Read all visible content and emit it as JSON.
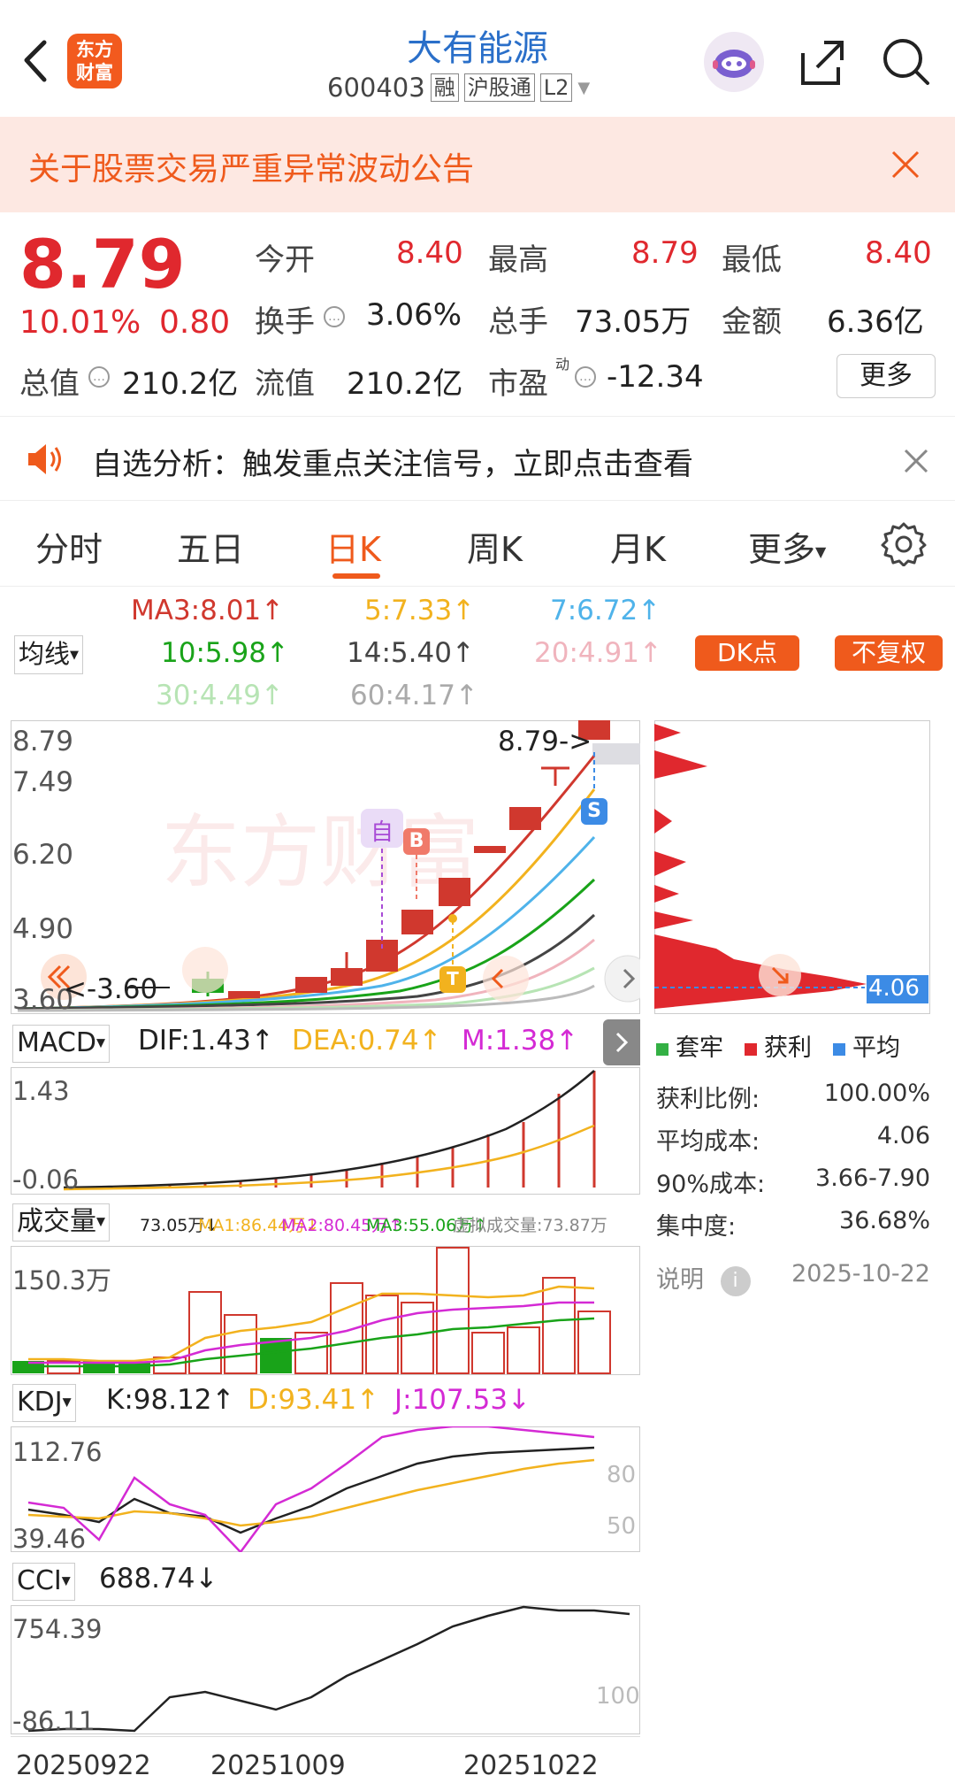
{
  "header": {
    "back_label": "‹",
    "logo_line1": "东方",
    "logo_line2": "财富",
    "stock_name": "大有能源",
    "stock_code": "600403",
    "tags": [
      "融",
      "沪股通",
      "L2"
    ]
  },
  "notice": {
    "text": "关于股票交易严重异常波动公告"
  },
  "quote": {
    "price": "8.79",
    "change_pct": "10.01%",
    "change_amt": "0.80",
    "stats": [
      {
        "label": "今开",
        "value": "8.40"
      },
      {
        "label": "最高",
        "value": "8.79"
      },
      {
        "label": "最低",
        "value": "8.40"
      },
      {
        "label": "换手",
        "value": "3.06%"
      },
      {
        "label": "总手",
        "value": "73.05万"
      },
      {
        "label": "金额",
        "value": "6.36亿"
      }
    ],
    "total_value_label": "总值",
    "total_value": "210.2亿",
    "float_label": "流值",
    "float_value": "210.2亿",
    "pe_label": "市盈",
    "pe_sup": "动",
    "pe_value": "-12.34",
    "more_label": "更多"
  },
  "alert": {
    "text": "自选分析：触发重点关注信号，立即点击查看"
  },
  "tabs": [
    {
      "label": "分时"
    },
    {
      "label": "五日"
    },
    {
      "label": "日K"
    },
    {
      "label": "周K"
    },
    {
      "label": "月K"
    },
    {
      "label": "更多"
    }
  ],
  "ma": {
    "selector": "均线",
    "items": [
      "MA3:8.01↑",
      "5:7.33↑",
      "7:6.72↑",
      "10:5.98↑",
      "14:5.40↑",
      "20:4.91↑",
      "30:4.49↑",
      "60:4.17↑"
    ],
    "dk_label": "DK点",
    "fq_label": "不复权"
  },
  "kline": {
    "y_labels": [
      "8.79",
      "7.49",
      "6.20",
      "4.90",
      "3.60"
    ],
    "price_tag": "8.79->",
    "low_tag": "<-3.60",
    "zi_label": "自",
    "b_label": "B",
    "s_label": "S"
  },
  "macd": {
    "selector": "MACD",
    "dif": "DIF:1.43↑",
    "dea": "DEA:0.74↑",
    "m": "M:1.38↑",
    "y_top": "1.43",
    "y_bot": "-0.06"
  },
  "volume": {
    "selector": "成交量",
    "v1": "73.05万↓",
    "v2": "MA1:86.44万↓",
    "v3": "MA2:80.45万↑",
    "v4": "MA3:55.06万↑",
    "v5": "虚拟成交量:73.87万",
    "y_top": "150.3万"
  },
  "kdj": {
    "selector": "KDJ",
    "k": "K:98.12↑",
    "d": "D:93.41↑",
    "j": "J:107.53↓",
    "y_top": "112.76",
    "y_bot": "39.46",
    "r80": "80",
    "r50": "50"
  },
  "cci": {
    "selector": "CCI",
    "value": "688.74↓",
    "y_top": "754.39",
    "y_bot": "-86.11",
    "r100": "100"
  },
  "dates": [
    "20250922",
    "20251009",
    "20251022"
  ],
  "chip": {
    "legend": [
      "套牢",
      "获利",
      "平均"
    ],
    "avg_tag": "4.06",
    "rows": [
      {
        "label": "获利比例:",
        "value": "100.00%"
      },
      {
        "label": "平均成本:",
        "value": "4.06"
      },
      {
        "label": "90%成本:",
        "value": "3.66-7.90"
      },
      {
        "label": "集中度:",
        "value": "36.68%"
      }
    ],
    "note_label": "说明",
    "date": "2025-10-22"
  },
  "colors": {
    "red": "#e0282e",
    "orange": "#ef5a1c",
    "green": "#19a319",
    "yellow": "#f2b21e",
    "magenta": "#d42ad4",
    "blue": "#3c8be5"
  }
}
